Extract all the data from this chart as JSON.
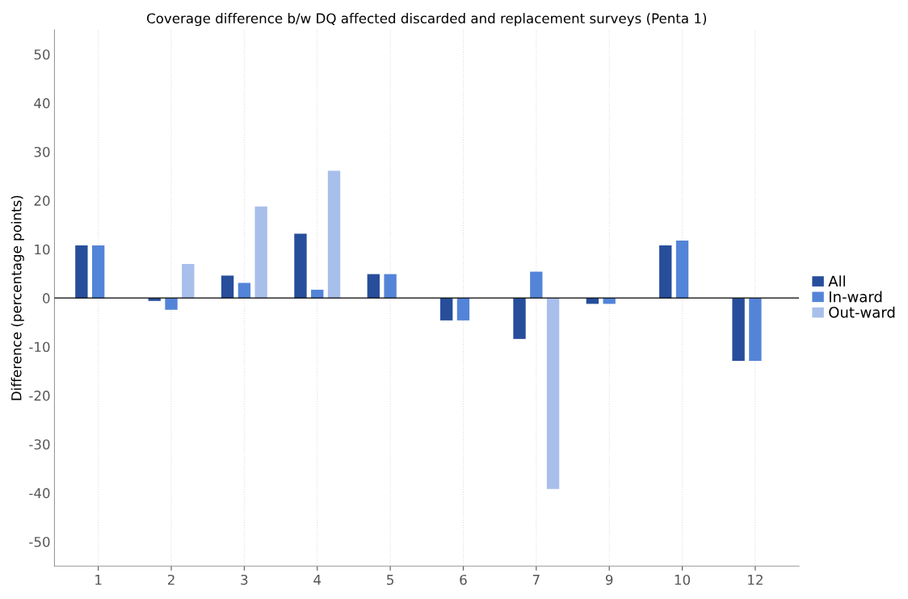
{
  "chart_data": {
    "type": "bar",
    "title": "Coverage difference b/w DQ affected discarded and replacement surveys (Penta 1)",
    "ylabel": "Difference (percentage points)",
    "categories": [
      "1",
      "2",
      "3",
      "4",
      "5",
      "6",
      "7",
      "9",
      "10",
      "12"
    ],
    "series": [
      {
        "name": "All",
        "color": "#274e9b",
        "values": [
          10.8,
          -0.6,
          4.6,
          13.2,
          4.9,
          -4.6,
          -8.4,
          -1.2,
          10.8,
          -12.9
        ]
      },
      {
        "name": "In-ward",
        "color": "#5384d8",
        "values": [
          10.8,
          -2.4,
          3.1,
          1.7,
          4.9,
          -4.6,
          5.4,
          -1.2,
          11.8,
          -12.9
        ]
      },
      {
        "name": "Out-ward",
        "color": "#a8bfeb",
        "values": [
          null,
          7.0,
          18.8,
          26.1,
          null,
          null,
          -39.2,
          null,
          null,
          null
        ]
      }
    ],
    "ylim": [
      -55,
      55
    ],
    "yticks": [
      -50,
      -40,
      -30,
      -20,
      -10,
      0,
      10,
      20,
      30,
      40,
      50
    ],
    "ref_lines": [
      {
        "axis": "y",
        "value": 0,
        "color": "#000000"
      }
    ],
    "grid": "x",
    "legend": "right"
  }
}
